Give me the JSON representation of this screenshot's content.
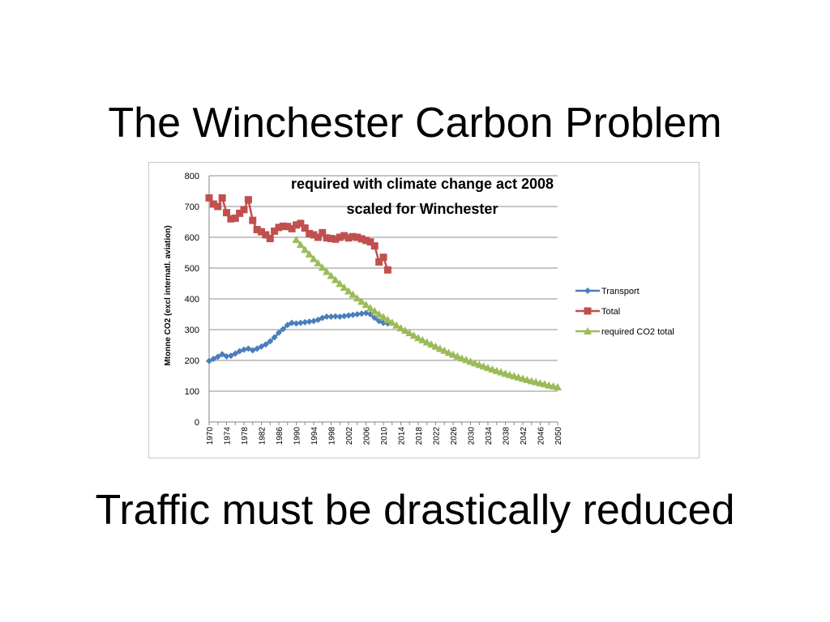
{
  "slide": {
    "title": "The Winchester Carbon Problem",
    "subtitle": "Traffic must be drastically reduced"
  },
  "chart_data": {
    "type": "line",
    "title_lines": [
      "required with climate change act 2008",
      "scaled for Winchester"
    ],
    "xlabel": "",
    "ylabel": "Mtonne CO2 (excl internatl. aviation)",
    "ylim": [
      0,
      800
    ],
    "yticks": [
      0,
      100,
      200,
      300,
      400,
      500,
      600,
      700,
      800
    ],
    "xlim": [
      1970,
      2050
    ],
    "xticks": [
      1970,
      1974,
      1978,
      1982,
      1986,
      1990,
      1994,
      1998,
      2002,
      2006,
      2010,
      2014,
      2018,
      2022,
      2026,
      2030,
      2034,
      2038,
      2042,
      2046,
      2050
    ],
    "grid": true,
    "legend_position": "right",
    "series": [
      {
        "name": "Transport",
        "color": "#4a7ebb",
        "marker": "diamond",
        "x": [
          1970,
          1971,
          1972,
          1973,
          1974,
          1975,
          1976,
          1977,
          1978,
          1979,
          1980,
          1981,
          1982,
          1983,
          1984,
          1985,
          1986,
          1987,
          1988,
          1989,
          1990,
          1991,
          1992,
          1993,
          1994,
          1995,
          1996,
          1997,
          1998,
          1999,
          2000,
          2001,
          2002,
          2003,
          2004,
          2005,
          2006,
          2007,
          2008,
          2009,
          2010,
          2011
        ],
        "y": [
          198,
          205,
          212,
          220,
          213,
          215,
          222,
          230,
          235,
          238,
          233,
          238,
          245,
          252,
          262,
          275,
          290,
          302,
          315,
          322,
          320,
          322,
          324,
          326,
          328,
          332,
          338,
          342,
          342,
          343,
          342,
          344,
          346,
          348,
          350,
          352,
          354,
          350,
          338,
          328,
          322,
          320
        ]
      },
      {
        "name": "Total",
        "color": "#c0504d",
        "marker": "square",
        "x": [
          1970,
          1971,
          1972,
          1973,
          1974,
          1975,
          1976,
          1977,
          1978,
          1979,
          1980,
          1981,
          1982,
          1983,
          1984,
          1985,
          1986,
          1987,
          1988,
          1989,
          1990,
          1991,
          1992,
          1993,
          1994,
          1995,
          1996,
          1997,
          1998,
          1999,
          2000,
          2001,
          2002,
          2003,
          2004,
          2005,
          2006,
          2007,
          2008,
          2009,
          2010,
          2011
        ],
        "y": [
          728,
          708,
          700,
          728,
          680,
          660,
          662,
          678,
          690,
          722,
          655,
          625,
          618,
          608,
          596,
          620,
          632,
          636,
          635,
          628,
          640,
          645,
          630,
          612,
          608,
          600,
          615,
          598,
          596,
          594,
          600,
          605,
          598,
          602,
          600,
          595,
          590,
          585,
          572,
          520,
          535,
          494
        ]
      },
      {
        "name": "required CO2 total",
        "color": "#9bbb59",
        "marker": "triangle",
        "x_start": 1990,
        "x_end": 2050,
        "y_start": 592,
        "y_end": 113
      }
    ]
  }
}
